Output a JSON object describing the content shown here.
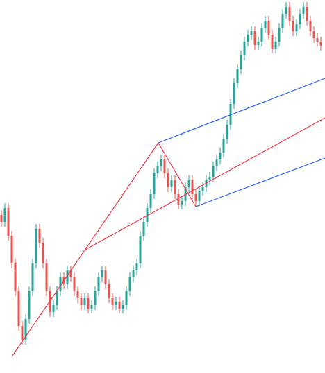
{
  "chart_data": {
    "type": "candlestick",
    "up_color": "#26a69a",
    "down_color": "#ef5350",
    "xlim": [
      -0.4,
      93.2
    ],
    "ylim": [
      0,
      538
    ],
    "open": [
      228,
      218,
      238,
      198,
      158,
      118,
      68,
      48,
      78,
      118,
      158,
      208,
      188,
      158,
      118,
      88,
      98,
      118,
      138,
      128,
      148,
      138,
      118,
      108,
      98,
      108,
      93,
      98,
      118,
      138,
      148,
      128,
      108,
      98,
      103,
      93,
      98,
      118,
      138,
      148,
      158,
      198,
      218,
      238,
      258,
      288,
      298,
      308,
      288,
      268,
      278,
      258,
      243,
      248,
      268,
      278,
      258,
      248,
      263,
      268,
      278,
      283,
      298,
      308,
      318,
      338,
      358,
      388,
      418,
      438,
      458,
      478,
      488,
      493,
      473,
      478,
      498,
      508,
      488,
      468,
      478,
      498,
      518,
      528,
      508,
      493,
      503,
      518,
      528,
      508,
      493,
      483,
      478
    ],
    "high": [
      235,
      245,
      245,
      205,
      165,
      125,
      75,
      85,
      125,
      165,
      215,
      215,
      195,
      165,
      125,
      105,
      125,
      145,
      145,
      155,
      155,
      145,
      125,
      115,
      115,
      115,
      105,
      125,
      145,
      155,
      155,
      135,
      115,
      110,
      110,
      105,
      125,
      145,
      155,
      165,
      205,
      225,
      245,
      265,
      295,
      305,
      315,
      315,
      295,
      285,
      285,
      265,
      255,
      275,
      285,
      285,
      265,
      270,
      275,
      285,
      290,
      305,
      315,
      325,
      345,
      365,
      395,
      425,
      445,
      465,
      485,
      495,
      500,
      500,
      485,
      505,
      515,
      515,
      495,
      485,
      505,
      525,
      535,
      535,
      515,
      510,
      525,
      535,
      535,
      515,
      500,
      490,
      485
    ],
    "low": [
      211,
      211,
      191,
      151,
      111,
      61,
      41,
      41,
      71,
      111,
      151,
      181,
      151,
      111,
      81,
      81,
      91,
      111,
      121,
      121,
      131,
      111,
      101,
      91,
      91,
      86,
      86,
      91,
      111,
      131,
      121,
      101,
      91,
      91,
      86,
      86,
      91,
      111,
      131,
      141,
      151,
      191,
      211,
      231,
      251,
      281,
      291,
      281,
      261,
      261,
      251,
      236,
      236,
      241,
      261,
      251,
      241,
      241,
      256,
      261,
      271,
      276,
      291,
      301,
      311,
      331,
      351,
      381,
      411,
      431,
      451,
      471,
      481,
      466,
      466,
      471,
      491,
      481,
      461,
      461,
      471,
      491,
      511,
      501,
      486,
      486,
      496,
      511,
      501,
      486,
      476,
      471,
      465
    ],
    "close": [
      218,
      238,
      198,
      158,
      118,
      68,
      48,
      78,
      118,
      158,
      208,
      188,
      158,
      118,
      88,
      98,
      118,
      138,
      128,
      148,
      138,
      118,
      108,
      98,
      108,
      93,
      98,
      118,
      138,
      148,
      128,
      108,
      98,
      103,
      93,
      98,
      118,
      138,
      148,
      158,
      198,
      218,
      238,
      258,
      288,
      298,
      308,
      288,
      268,
      278,
      258,
      243,
      248,
      268,
      278,
      258,
      248,
      263,
      268,
      278,
      283,
      298,
      308,
      318,
      338,
      358,
      388,
      418,
      438,
      458,
      478,
      488,
      493,
      473,
      478,
      498,
      508,
      488,
      468,
      478,
      498,
      518,
      528,
      508,
      493,
      503,
      518,
      528,
      508,
      493,
      483,
      478,
      472
    ],
    "lines": [
      {
        "color": "#f23645",
        "x": [
          3.2,
          45.2
        ],
        "y": [
          25,
          332
        ]
      },
      {
        "color": "#f23645",
        "x": [
          24.2,
          93.2
        ],
        "y": [
          178,
          368
        ]
      },
      {
        "color": "#f23645",
        "x": [
          45.2,
          56
        ],
        "y": [
          332,
          240
        ]
      },
      {
        "color": "#2962ff",
        "x": [
          45.2,
          93.2
        ],
        "y": [
          332,
          425
        ]
      },
      {
        "color": "#2962ff",
        "x": [
          56,
          93.2
        ],
        "y": [
          240,
          310
        ]
      }
    ]
  }
}
